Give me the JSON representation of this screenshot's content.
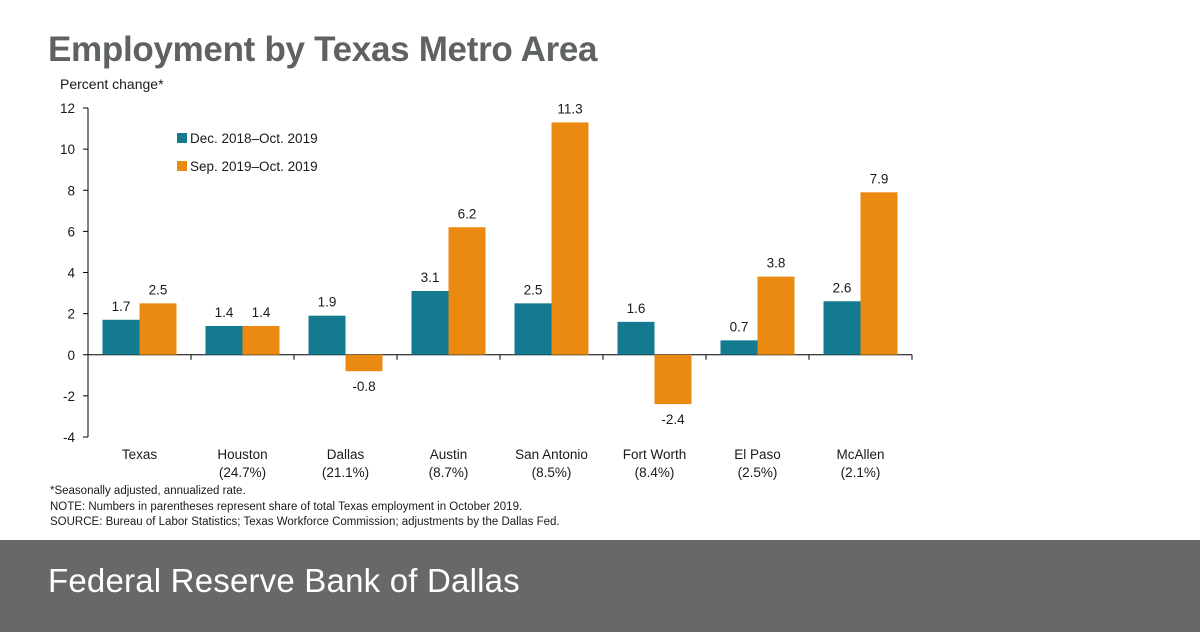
{
  "title": "Employment by Texas Metro Area",
  "units_label": "Percent change*",
  "chart_data": {
    "type": "bar",
    "categories": [
      "Texas",
      "Houston",
      "Dallas",
      "Austin",
      "San Antonio",
      "Fort Worth",
      "El Paso",
      "McAllen"
    ],
    "category_shares": [
      "",
      "(24.7%)",
      "(21.1%)",
      "(8.7%)",
      "(8.5%)",
      "(8.4%)",
      "(2.5%)",
      "(2.1%)"
    ],
    "series": [
      {
        "name": "Dec. 2018–Oct. 2019",
        "color": "#137a8f",
        "values": [
          1.7,
          1.4,
          1.9,
          3.1,
          2.5,
          1.6,
          0.7,
          2.6
        ],
        "labels": [
          "1.7",
          "1.4",
          "1.9",
          "3.1",
          "2.5",
          "1.6",
          "0.7",
          "2.6"
        ]
      },
      {
        "name": "Sep. 2019–Oct. 2019",
        "color": "#ea8a10",
        "values": [
          2.5,
          1.4,
          -0.8,
          6.2,
          11.3,
          -2.4,
          3.8,
          7.9
        ],
        "labels": [
          "2.5",
          "1.4",
          "-0.8",
          "6.2",
          "11.3",
          "-2.4",
          "3.8",
          "7.9"
        ]
      }
    ],
    "ylim": [
      -4,
      12
    ],
    "yticks": [
      -4,
      -2,
      0,
      2,
      4,
      6,
      8,
      10,
      12
    ],
    "ylabel": "Percent change*",
    "legend_position": "top-left"
  },
  "notes": [
    "*Seasonally adjusted, annualized rate.",
    "NOTE: Numbers in parentheses represent share of total Texas employment in October 2019.",
    "SOURCE: Bureau of Labor Statistics; Texas Workforce Commission; adjustments by the Dallas Fed."
  ],
  "footer": "Federal Reserve Bank of Dallas"
}
